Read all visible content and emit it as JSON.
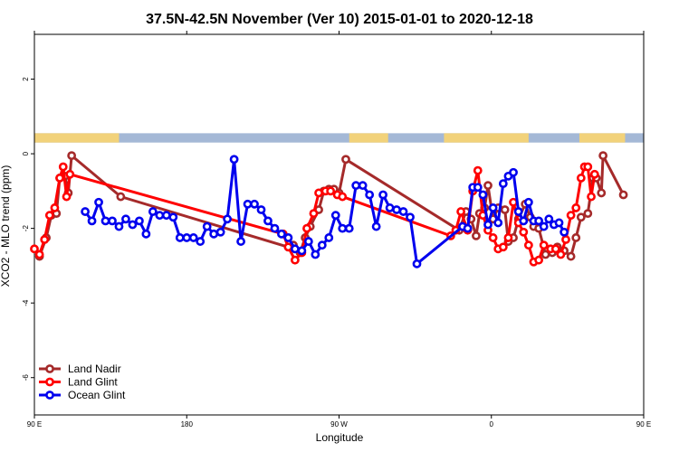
{
  "chart_data": {
    "type": "line",
    "title": "37.5N-42.5N November (Ver 10)   2015-01-01 to 2020-12-18",
    "xlabel": "Longitude",
    "ylabel": "XCO2 - MLO trend (ppm)",
    "xlim": [
      90,
      450
    ],
    "ylim": [
      -7,
      3.2
    ],
    "x_ticks": [
      {
        "value": 90,
        "label": "90 E"
      },
      {
        "value": 180,
        "label": "180"
      },
      {
        "value": 270,
        "label": "90 W"
      },
      {
        "value": 360,
        "label": "0"
      },
      {
        "value": 450,
        "label": "90 E"
      }
    ],
    "x_ticks_top": [
      {
        "value": 90,
        "label": "90 E"
      },
      {
        "value": 180,
        "label": "180"
      },
      {
        "value": 270,
        "label": "90 W"
      },
      {
        "value": 360,
        "label": "0"
      },
      {
        "value": 450,
        "label": "90 E"
      }
    ],
    "y_ticks": [
      {
        "value": 2,
        "label": "2"
      },
      {
        "value": 0,
        "label": "0"
      },
      {
        "value": -2,
        "label": "-2"
      },
      {
        "value": -4,
        "label": "-4"
      },
      {
        "value": -6,
        "label": "-6"
      }
    ],
    "land_band": {
      "y_range": [
        0.3,
        0.55
      ],
      "ocean_color": "#a4b8d6",
      "land_color": "#f2d27a",
      "land_segments": [
        [
          90,
          140
        ],
        [
          276,
          299
        ],
        [
          332,
          382
        ],
        [
          412,
          439
        ]
      ]
    },
    "legend_placement": "bottom-left",
    "series": [
      {
        "name": "Land Nadir",
        "color": "#a52a2a",
        "points": [
          [
            93,
            -2.75
          ],
          [
            97,
            -2.25
          ],
          [
            100,
            -1.65
          ],
          [
            103,
            -1.6
          ],
          [
            105,
            -0.65
          ],
          [
            108,
            -0.6
          ],
          [
            110,
            -1.05
          ],
          [
            112,
            -0.05
          ],
          [
            141,
            -1.15
          ],
          [
            240,
            -2.5
          ],
          [
            243,
            -2.45
          ],
          [
            247,
            -2.65
          ],
          [
            250,
            -2.25
          ],
          [
            253,
            -1.95
          ],
          [
            258,
            -1.5
          ],
          [
            261,
            -1.0
          ],
          [
            264,
            -0.95
          ],
          [
            267,
            -0.95
          ],
          [
            270,
            -1.05
          ],
          [
            274,
            -0.15
          ],
          [
            341,
            -2.05
          ],
          [
            345,
            -1.55
          ],
          [
            348,
            -1.75
          ],
          [
            351,
            -2.2
          ],
          [
            353,
            -1.6
          ],
          [
            356,
            -1.45
          ],
          [
            358,
            -0.85
          ],
          [
            361,
            -1.75
          ],
          [
            364,
            -1.45
          ],
          [
            368,
            -1.5
          ],
          [
            370,
            -2.35
          ],
          [
            373,
            -2.25
          ],
          [
            376,
            -1.75
          ],
          [
            380,
            -1.35
          ],
          [
            383,
            -1.7
          ],
          [
            385,
            -1.95
          ],
          [
            388,
            -2.0
          ],
          [
            392,
            -2.7
          ],
          [
            396,
            -2.65
          ],
          [
            399,
            -2.5
          ],
          [
            403,
            -2.6
          ],
          [
            407,
            -2.75
          ],
          [
            410,
            -2.25
          ],
          [
            413,
            -1.7
          ],
          [
            417,
            -1.6
          ],
          [
            420,
            -0.65
          ],
          [
            422,
            -0.65
          ],
          [
            425,
            -1.05
          ],
          [
            426,
            -0.05
          ],
          [
            438,
            -1.1
          ]
        ]
      },
      {
        "name": "Land Glint",
        "color": "#ff0000",
        "points": [
          [
            90,
            -2.55
          ],
          [
            93,
            -2.7
          ],
          [
            96,
            -2.3
          ],
          [
            99,
            -1.65
          ],
          [
            102,
            -1.45
          ],
          [
            105,
            -0.65
          ],
          [
            107,
            -0.35
          ],
          [
            109,
            -1.15
          ],
          [
            111,
            -0.55
          ],
          [
            237,
            -2.15
          ],
          [
            240,
            -2.5
          ],
          [
            244,
            -2.85
          ],
          [
            248,
            -2.65
          ],
          [
            251,
            -2.0
          ],
          [
            255,
            -1.6
          ],
          [
            258,
            -1.05
          ],
          [
            262,
            -1.0
          ],
          [
            265,
            -1.0
          ],
          [
            269,
            -1.1
          ],
          [
            272,
            -1.15
          ],
          [
            336,
            -2.2
          ],
          [
            339,
            -2.05
          ],
          [
            342,
            -1.55
          ],
          [
            346,
            -2.05
          ],
          [
            349,
            -1.0
          ],
          [
            352,
            -0.45
          ],
          [
            355,
            -1.65
          ],
          [
            358,
            -2.05
          ],
          [
            361,
            -2.25
          ],
          [
            364,
            -2.55
          ],
          [
            367,
            -2.5
          ],
          [
            370,
            -2.25
          ],
          [
            373,
            -1.3
          ],
          [
            376,
            -1.85
          ],
          [
            379,
            -2.1
          ],
          [
            382,
            -2.45
          ],
          [
            385,
            -2.9
          ],
          [
            388,
            -2.85
          ],
          [
            391,
            -2.45
          ],
          [
            395,
            -2.55
          ],
          [
            398,
            -2.55
          ],
          [
            401,
            -2.7
          ],
          [
            404,
            -2.3
          ],
          [
            407,
            -1.65
          ],
          [
            410,
            -1.45
          ],
          [
            413,
            -0.65
          ],
          [
            415,
            -0.35
          ],
          [
            417,
            -0.35
          ],
          [
            419,
            -1.15
          ],
          [
            421,
            -0.55
          ]
        ]
      },
      {
        "name": "Ocean Glint",
        "color": "#0000ee",
        "points": [
          [
            120,
            -1.55
          ],
          [
            124,
            -1.8
          ],
          [
            128,
            -1.3
          ],
          [
            132,
            -1.8
          ],
          [
            136,
            -1.8
          ],
          [
            140,
            -1.95
          ],
          [
            144,
            -1.75
          ],
          [
            148,
            -1.9
          ],
          [
            152,
            -1.8
          ],
          [
            156,
            -2.15
          ],
          [
            160,
            -1.55
          ],
          [
            164,
            -1.65
          ],
          [
            168,
            -1.65
          ],
          [
            172,
            -1.7
          ],
          [
            176,
            -2.25
          ],
          [
            180,
            -2.25
          ],
          [
            184,
            -2.25
          ],
          [
            188,
            -2.35
          ],
          [
            192,
            -1.95
          ],
          [
            196,
            -2.15
          ],
          [
            200,
            -2.1
          ],
          [
            204,
            -1.75
          ],
          [
            208,
            -0.15
          ],
          [
            212,
            -2.35
          ],
          [
            216,
            -1.35
          ],
          [
            220,
            -1.35
          ],
          [
            224,
            -1.5
          ],
          [
            228,
            -1.8
          ],
          [
            232,
            -2.0
          ],
          [
            236,
            -2.15
          ],
          [
            240,
            -2.25
          ],
          [
            244,
            -2.55
          ],
          [
            248,
            -2.6
          ],
          [
            252,
            -2.35
          ],
          [
            256,
            -2.7
          ],
          [
            260,
            -2.45
          ],
          [
            264,
            -2.25
          ],
          [
            268,
            -1.65
          ],
          [
            272,
            -2.0
          ],
          [
            276,
            -2.0
          ],
          [
            280,
            -0.85
          ],
          [
            284,
            -0.85
          ],
          [
            288,
            -1.1
          ],
          [
            292,
            -1.95
          ],
          [
            296,
            -1.1
          ],
          [
            300,
            -1.45
          ],
          [
            304,
            -1.5
          ],
          [
            308,
            -1.55
          ],
          [
            312,
            -1.7
          ],
          [
            316,
            -2.95
          ],
          [
            343,
            -1.95
          ],
          [
            346,
            -2.0
          ],
          [
            349,
            -0.9
          ],
          [
            352,
            -0.9
          ],
          [
            355,
            -1.1
          ],
          [
            358,
            -1.9
          ],
          [
            361,
            -1.45
          ],
          [
            364,
            -1.85
          ],
          [
            367,
            -0.8
          ],
          [
            370,
            -0.6
          ],
          [
            373,
            -0.5
          ],
          [
            376,
            -1.55
          ],
          [
            379,
            -1.8
          ],
          [
            382,
            -1.3
          ],
          [
            385,
            -1.8
          ],
          [
            388,
            -1.8
          ],
          [
            391,
            -1.95
          ],
          [
            394,
            -1.75
          ],
          [
            397,
            -1.9
          ],
          [
            400,
            -1.85
          ],
          [
            403,
            -2.1
          ]
        ]
      }
    ]
  }
}
